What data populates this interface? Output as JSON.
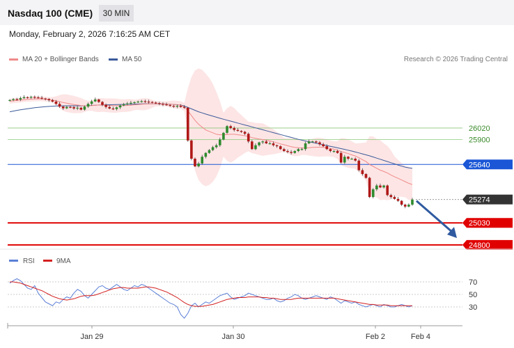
{
  "header": {
    "title": "Nasdaq 100 (CME)",
    "timeframe": "30 MIN"
  },
  "datetime": "Monday, February 2, 2026 7:16:25 AM CET",
  "legend": {
    "ma20": "MA 20 + Bollinger Bands",
    "ma50": "MA 50",
    "rsi": "RSI",
    "ma9": "9MA"
  },
  "credit": "Research © 2026 Trading Central",
  "colors": {
    "bullish": "#2e8b2e",
    "bearish": "#b01818",
    "ma20": "#f08a8a",
    "ma50": "#3b5a9a",
    "band": "#fde2e2",
    "support": "#e00000",
    "pivot": "#1a56d6",
    "rsi": "#5b7fd6",
    "ma9": "#d42020"
  },
  "chart_data": [
    {
      "type": "candlestick",
      "x_ticks": [
        "Jan 29",
        "Jan 30",
        "Feb 2",
        "Feb 4"
      ],
      "levels": [
        {
          "value": 26020,
          "label": "26020",
          "kind": "resistance"
        },
        {
          "value": 25900,
          "label": "25900",
          "kind": "resistance"
        },
        {
          "value": 25640,
          "label": "25640",
          "kind": "pivot"
        },
        {
          "value": 25274,
          "label": "25274",
          "kind": "last"
        },
        {
          "value": 25030,
          "label": "25030",
          "kind": "target"
        },
        {
          "value": 24800,
          "label": "24800",
          "kind": "target"
        }
      ],
      "ylim": [
        24770,
        26630
      ],
      "close": [
        26312,
        26322,
        26318,
        26332,
        26342,
        26338,
        26346,
        26340,
        26336,
        26328,
        26322,
        26310,
        26296,
        26272,
        26244,
        26226,
        26240,
        26238,
        26224,
        26232,
        26212,
        26244,
        26272,
        26298,
        26318,
        26292,
        26262,
        26240,
        26224,
        26218,
        26236,
        26256,
        26268,
        26276,
        26284,
        26290,
        26296,
        26300,
        26296,
        26292,
        26286,
        26280,
        26272,
        26266,
        26260,
        26252,
        26244,
        26252,
        26240,
        26232,
        25890,
        25700,
        25620,
        25650,
        25720,
        25760,
        25790,
        25820,
        25840,
        25900,
        25970,
        26040,
        26020,
        26000,
        25990,
        25980,
        25960,
        25880,
        25800,
        25840,
        25870,
        25880,
        25860,
        25860,
        25840,
        25830,
        25800,
        25780,
        25770,
        25760,
        25780,
        25800,
        25800,
        25860,
        25880,
        25880,
        25870,
        25850,
        25830,
        25800,
        25780,
        25780,
        25760,
        25660,
        25720,
        25700,
        25700,
        25680,
        25580,
        25540,
        25500,
        25300,
        25380,
        25420,
        25400,
        25420,
        25320,
        25300,
        25280,
        25260,
        25220,
        25200,
        25220,
        25274
      ],
      "ma20": [
        26300,
        26304,
        26308,
        26312,
        26316,
        26320,
        26322,
        26324,
        26325,
        26324,
        26322,
        26318,
        26312,
        26304,
        26295,
        26286,
        26279,
        26272,
        26265,
        26260,
        26255,
        26252,
        26252,
        26254,
        26258,
        26260,
        26260,
        26258,
        26256,
        26254,
        26253,
        26253,
        26254,
        26256,
        26258,
        26262,
        26265,
        26268,
        26270,
        26272,
        26273,
        26274,
        26274,
        26273,
        26271,
        26269,
        26266,
        26263,
        26260,
        26240,
        26200,
        26150,
        26100,
        26060,
        26030,
        26000,
        25985,
        25970,
        25955,
        25950,
        25950,
        25952,
        25955,
        25955,
        25950,
        25945,
        25940,
        25932,
        25920,
        25912,
        25905,
        25900,
        25893,
        25885,
        25876,
        25866,
        25855,
        25845,
        25835,
        25825,
        25818,
        25814,
        25812,
        25812,
        25814,
        25818,
        25820,
        25820,
        25818,
        25813,
        25806,
        25800,
        25790,
        25775,
        25765,
        25753,
        25740,
        25728,
        25710,
        25690,
        25670,
        25640,
        25620,
        25600,
        25580,
        25566,
        25550,
        25530,
        25512,
        25495,
        25478,
        25460,
        25443,
        25430
      ],
      "ma50": [
        26190,
        26197,
        26204,
        26210,
        26216,
        26222,
        26227,
        26232,
        26236,
        26240,
        26243,
        26246,
        26248,
        26250,
        26251,
        26252,
        26252,
        26252,
        26252,
        26252,
        26252,
        26253,
        26254,
        26256,
        26258,
        26260,
        26261,
        26262,
        26263,
        26264,
        26265,
        26266,
        26267,
        26268,
        26269,
        26270,
        26271,
        26272,
        26273,
        26273,
        26273,
        26273,
        26272,
        26271,
        26270,
        26268,
        26266,
        26263,
        26260,
        26250,
        26235,
        26220,
        26205,
        26190,
        26178,
        26166,
        26155,
        26144,
        26133,
        26122,
        26112,
        26102,
        26092,
        26082,
        26072,
        26062,
        26052,
        26042,
        26032,
        26022,
        26012,
        26002,
        25992,
        25982,
        25972,
        25962,
        25952,
        25942,
        25932,
        25922,
        25912,
        25902,
        25893,
        25885,
        25877,
        25869,
        25861,
        25853,
        25845,
        25837,
        25829,
        25821,
        25813,
        25805,
        25797,
        25789,
        25780,
        25770,
        25760,
        25750,
        25740,
        25730,
        25718,
        25706,
        25694,
        25682,
        25670,
        25658,
        25646,
        25634,
        25622,
        25612,
        25605,
        25600
      ]
    },
    {
      "type": "line",
      "name": "RSI",
      "ylim": [
        0,
        100
      ],
      "ticks": [
        70,
        50,
        30
      ],
      "rsi": [
        68,
        72,
        75,
        72,
        66,
        60,
        58,
        64,
        52,
        45,
        38,
        35,
        32,
        38,
        36,
        42,
        46,
        44,
        52,
        58,
        55,
        48,
        44,
        50,
        56,
        62,
        64,
        60,
        58,
        62,
        66,
        62,
        58,
        56,
        60,
        64,
        62,
        66,
        64,
        60,
        56,
        52,
        48,
        44,
        40,
        36,
        34,
        30,
        18,
        12,
        20,
        32,
        36,
        30,
        34,
        38,
        36,
        40,
        44,
        48,
        50,
        52,
        46,
        42,
        44,
        46,
        48,
        52,
        50,
        48,
        46,
        44,
        42,
        42,
        44,
        40,
        38,
        40,
        44,
        46,
        50,
        48,
        44,
        42,
        44,
        46,
        48,
        46,
        44,
        42,
        46,
        44,
        40,
        36,
        40,
        38,
        36,
        38,
        34,
        32,
        30,
        32,
        34,
        32,
        30,
        34,
        32,
        30,
        30,
        32,
        34,
        32,
        30,
        32
      ],
      "ma9": [
        70,
        70,
        69,
        68,
        66,
        64,
        62,
        60,
        58,
        56,
        53,
        50,
        47,
        45,
        43,
        42,
        41,
        42,
        43,
        45,
        47,
        48,
        48,
        48,
        49,
        51,
        53,
        55,
        57,
        59,
        60,
        61,
        61,
        60,
        60,
        60,
        60,
        61,
        62,
        62,
        61,
        60,
        58,
        56,
        54,
        51,
        48,
        45,
        41,
        37,
        34,
        32,
        31,
        31,
        31,
        32,
        33,
        34,
        36,
        38,
        40,
        42,
        43,
        44,
        45,
        45,
        45,
        46,
        46,
        46,
        46,
        45,
        45,
        44,
        44,
        43,
        42,
        42,
        42,
        42,
        43,
        44,
        44,
        44,
        44,
        44,
        44,
        44,
        44,
        44,
        44,
        44,
        43,
        42,
        41,
        40,
        39,
        38,
        37,
        36,
        35,
        34,
        34,
        33,
        33,
        33,
        33,
        32,
        32,
        32,
        32,
        32,
        32,
        32
      ]
    }
  ]
}
